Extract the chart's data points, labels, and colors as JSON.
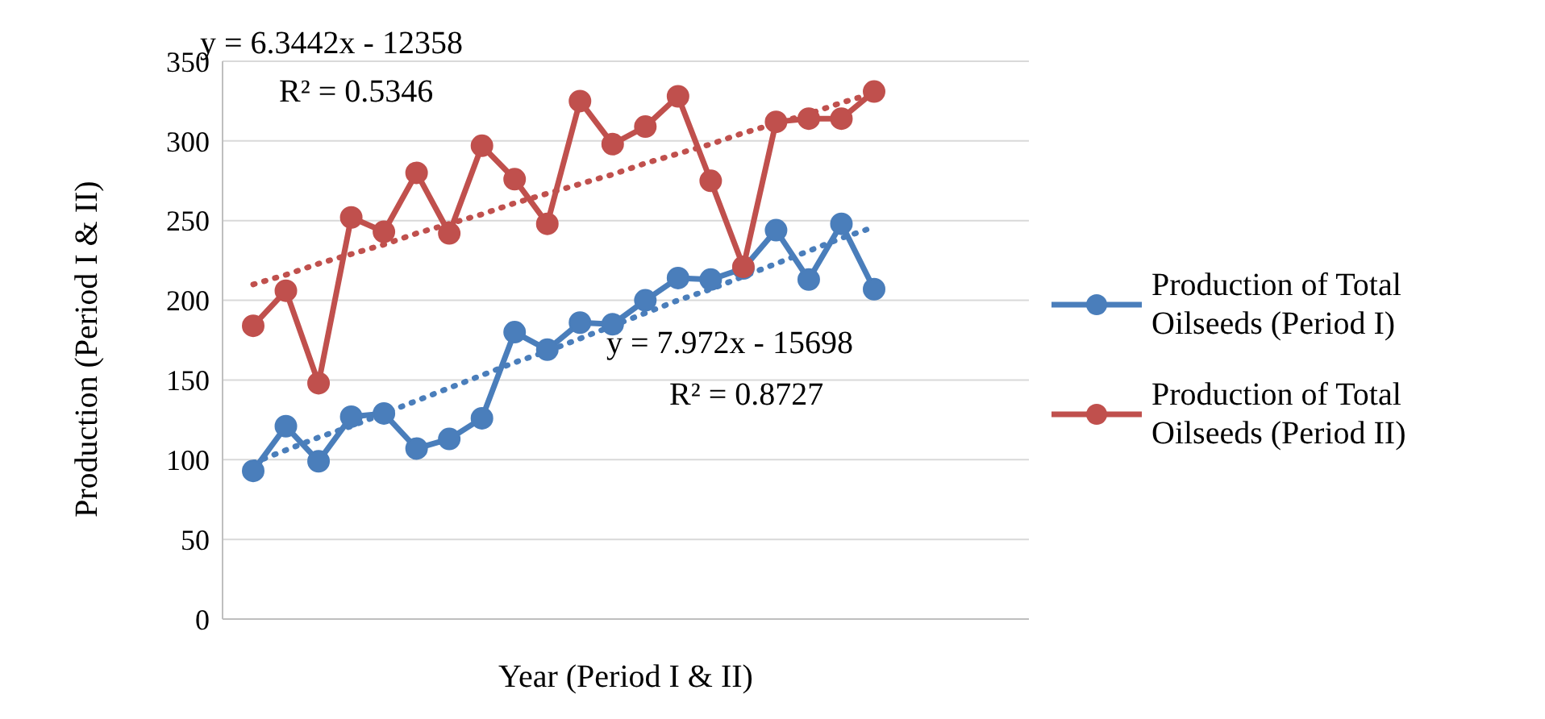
{
  "chart_data": {
    "type": "line",
    "xlabel": "Year (Period I & II)",
    "ylabel": "Production (Period I & II)",
    "categories": [
      null,
      null,
      null,
      null,
      null,
      null,
      null,
      null,
      null,
      null,
      null,
      null,
      null,
      null,
      null,
      null,
      null,
      null,
      null,
      null
    ],
    "ylim": [
      0,
      350
    ],
    "yticks": [
      0,
      50,
      100,
      150,
      200,
      250,
      300,
      350
    ],
    "grid": "y",
    "legend": "right",
    "marker": "circle",
    "line_style": "solid",
    "series": [
      {
        "name": "Production of Total Oilseeds (Period I)",
        "color": "#4a7ebb",
        "values": [
          93,
          121,
          99,
          127,
          129,
          107,
          113,
          126,
          180,
          169,
          186,
          185,
          200,
          214,
          213,
          220,
          244,
          213,
          248,
          207
        ]
      },
      {
        "name": "Production of Total Oilseeds (Period II)",
        "color": "#c0504d",
        "values": [
          184,
          206,
          148,
          252,
          243,
          280,
          242,
          297,
          276,
          248,
          325,
          298,
          309,
          328,
          275,
          221,
          312,
          314,
          314,
          331
        ]
      },
      {
        "type": "line",
        "color": "#4a7ebb",
        "values": [
          98,
          106,
          114,
          121,
          129,
          137,
          145,
          153,
          161,
          168,
          176,
          184,
          192,
          200,
          207,
          215,
          223,
          231,
          239,
          246
        ],
        "marker": "none",
        "line_style": "dotted"
      },
      {
        "type": "line",
        "color": "#c0504d",
        "values": [
          210,
          216,
          223,
          229,
          235,
          242,
          248,
          254,
          261,
          267,
          273,
          279,
          286,
          292,
          298,
          305,
          311,
          317,
          324,
          330
        ],
        "marker": "none",
        "line_style": "dotted"
      }
    ],
    "annotations": [
      "y = 6.3442x - 12358",
      "R² = 0.5346",
      "y = 7.972x - 15698",
      "R² = 0.8727"
    ]
  }
}
